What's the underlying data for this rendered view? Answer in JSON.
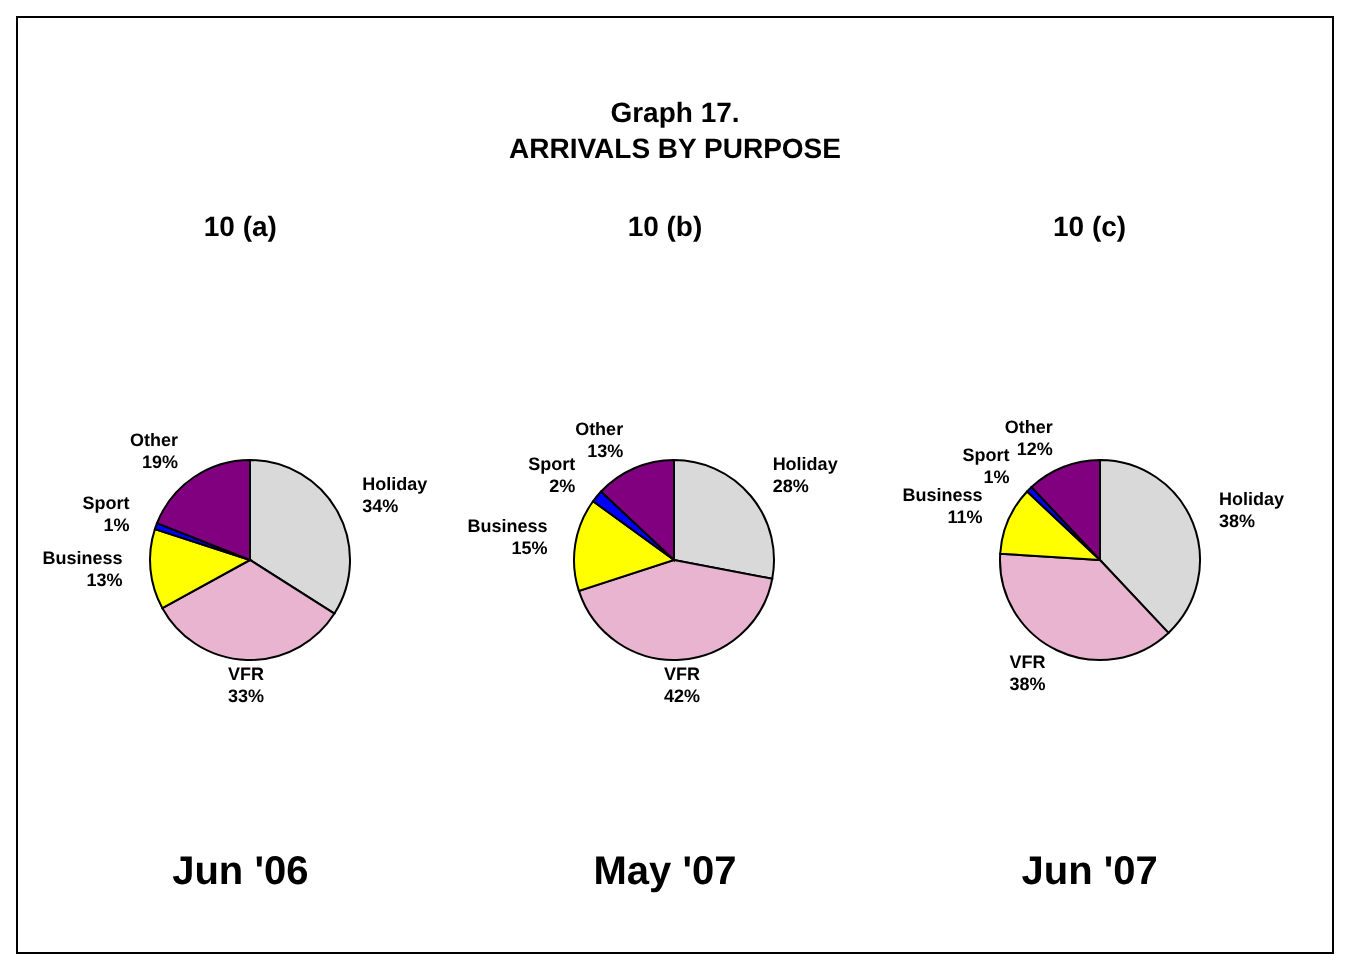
{
  "chart_data": [
    {
      "type": "pie",
      "title": "10 (a)",
      "xlabel": "Jun '06",
      "annotations": [
        "Graph 17.",
        "ARRIVALS BY PURPOSE"
      ],
      "categories": [
        "Holiday",
        "VFR",
        "Business",
        "Sport",
        "Other"
      ],
      "values": [
        34,
        33,
        13,
        1,
        19
      ],
      "value_labels": [
        "34%",
        "33%",
        "13%",
        "1%",
        "19%"
      ],
      "colors": [
        "#d9d9d9",
        "#e8b4cf",
        "#ffff00",
        "#0000ff",
        "#800080"
      ],
      "legend": false
    },
    {
      "type": "pie",
      "title": "10 (b)",
      "xlabel": "May '07",
      "categories": [
        "Holiday",
        "VFR",
        "Business",
        "Sport",
        "Other"
      ],
      "values": [
        28,
        42,
        15,
        2,
        13
      ],
      "value_labels": [
        "28%",
        "42%",
        "15%",
        "2%",
        "13%"
      ],
      "colors": [
        "#d9d9d9",
        "#e8b4cf",
        "#ffff00",
        "#0000ff",
        "#800080"
      ],
      "legend": false
    },
    {
      "type": "pie",
      "title": "10 (c)",
      "xlabel": "Jun '07",
      "categories": [
        "Holiday",
        "VFR",
        "Business",
        "Sport",
        "Other"
      ],
      "values": [
        38,
        38,
        11,
        1,
        12
      ],
      "value_labels": [
        "38%",
        "38%",
        "11%",
        "1%",
        "12%"
      ],
      "colors": [
        "#d9d9d9",
        "#e8b4cf",
        "#ffff00",
        "#0000ff",
        "#800080"
      ],
      "legend": false
    }
  ]
}
